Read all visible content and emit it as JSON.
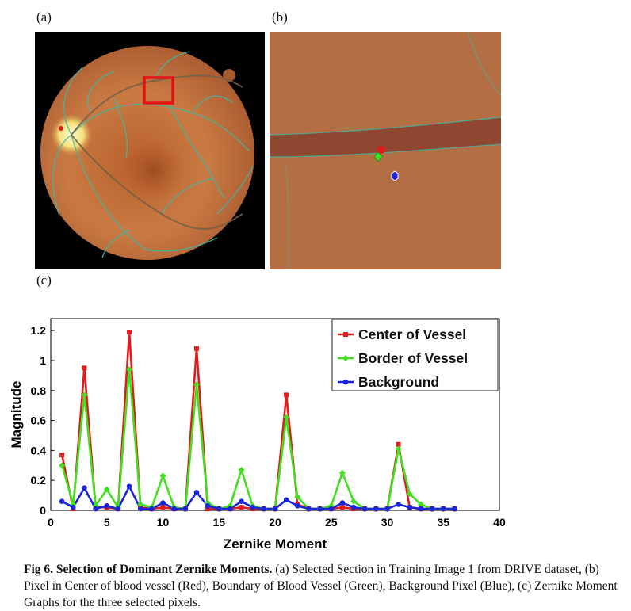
{
  "panels": {
    "a_label": "(a)",
    "b_label": "(b)",
    "c_label": "(c)"
  },
  "colors": {
    "center": "#e11c1c",
    "border": "#40e020",
    "background": "#1a24d8",
    "fundus": "#c8773f",
    "vessel_overlay": "#3fb8a8"
  },
  "chart_data": {
    "type": "line",
    "xlabel": "Zernike Moment",
    "ylabel": "Magnitude",
    "xlim": [
      0,
      40
    ],
    "ylim": [
      0,
      1.28
    ],
    "xticks": [
      "0",
      "5",
      "10",
      "15",
      "20",
      "25",
      "30",
      "35",
      "40"
    ],
    "yticks": [
      "0",
      "0.2",
      "0.4",
      "0.6",
      "0.8",
      "1",
      "1.2"
    ],
    "legend_position": "top-right",
    "grid": false,
    "x": [
      1,
      2,
      3,
      4,
      5,
      6,
      7,
      8,
      9,
      10,
      11,
      12,
      13,
      14,
      15,
      16,
      17,
      18,
      19,
      20,
      21,
      22,
      23,
      24,
      25,
      26,
      27,
      28,
      29,
      30,
      31,
      32,
      33,
      34,
      35,
      36
    ],
    "series": [
      {
        "name": "Center of Vessel",
        "color": "#e11c1c",
        "marker": "square",
        "values": [
          0.37,
          0.01,
          0.95,
          0.02,
          0.02,
          0.01,
          1.19,
          0.02,
          0.01,
          0.02,
          0.01,
          0.01,
          1.08,
          0.01,
          0.01,
          0.01,
          0.02,
          0.01,
          0.01,
          0.01,
          0.77,
          0.04,
          0.01,
          0.01,
          0.01,
          0.02,
          0.01,
          0.01,
          0.01,
          0.01,
          0.44,
          0.02,
          0.01,
          0.01,
          0.01,
          0.01
        ]
      },
      {
        "name": "Border of Vessel",
        "color": "#40e020",
        "marker": "diamond",
        "values": [
          0.3,
          0.04,
          0.77,
          0.03,
          0.14,
          0.02,
          0.94,
          0.04,
          0.02,
          0.23,
          0.02,
          0.01,
          0.84,
          0.05,
          0.01,
          0.03,
          0.27,
          0.03,
          0.01,
          0.01,
          0.62,
          0.09,
          0.01,
          0.01,
          0.03,
          0.25,
          0.06,
          0.01,
          0.01,
          0.01,
          0.41,
          0.11,
          0.04,
          0.01,
          0.01,
          0.01
        ]
      },
      {
        "name": "Background",
        "color": "#1a24d8",
        "marker": "circle",
        "values": [
          0.06,
          0.02,
          0.15,
          0.01,
          0.03,
          0.01,
          0.16,
          0.01,
          0.01,
          0.05,
          0.01,
          0.01,
          0.12,
          0.03,
          0.01,
          0.01,
          0.06,
          0.02,
          0.01,
          0.01,
          0.07,
          0.03,
          0.01,
          0.01,
          0.01,
          0.05,
          0.02,
          0.01,
          0.01,
          0.01,
          0.04,
          0.02,
          0.01,
          0.01,
          0.01,
          0.01
        ]
      }
    ]
  },
  "caption": {
    "prefix": "Fig 6. Selection of Dominant Zernike Moments.",
    "text": " (a) Selected Section in Training Image 1 from DRIVE dataset, (b) Pixel in Center of blood vessel (Red), Boundary of Blood Vessel (Green), Background Pixel (Blue), (c) Zernike Moment Graphs for the three selected pixels."
  }
}
